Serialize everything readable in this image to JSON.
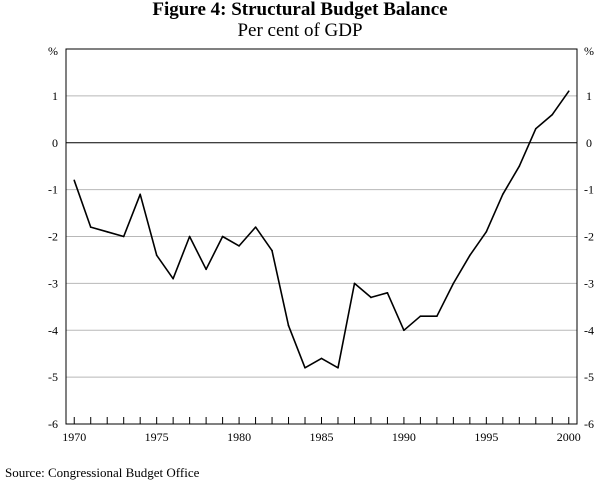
{
  "figure": {
    "title": "Figure 4: Structural Budget Balance",
    "subtitle": "Per cent of GDP",
    "source": "Source: Congressional Budget Office"
  },
  "chart_data": {
    "type": "line",
    "title": "Figure 4: Structural Budget Balance",
    "subtitle": "Per cent of GDP",
    "xlabel": "",
    "ylabel": "%",
    "y2label": "%",
    "xlim": [
      1969.5,
      2000.5
    ],
    "ylim": [
      -6,
      2
    ],
    "x_ticks": [
      1970,
      1975,
      1980,
      1985,
      1990,
      1995,
      2000
    ],
    "y_ticks": [
      1,
      0,
      -1,
      -2,
      -3,
      -4,
      -5,
      -6
    ],
    "grid": true,
    "series": [
      {
        "x": [
          1970,
          1971,
          1972,
          1973,
          1974,
          1975,
          1976,
          1977,
          1978,
          1979,
          1980,
          1981,
          1982,
          1983,
          1984,
          1985,
          1986,
          1987,
          1988,
          1989,
          1990,
          1991,
          1992,
          1993,
          1994,
          1995,
          1996,
          1997,
          1998,
          1999,
          2000
        ],
        "values": [
          -0.8,
          -1.8,
          -1.9,
          -2.0,
          -1.1,
          -2.4,
          -2.9,
          -2.0,
          -2.7,
          -2.0,
          -2.2,
          -1.8,
          -2.3,
          -3.9,
          -4.8,
          -4.6,
          -4.8,
          -3.0,
          -3.3,
          -3.2,
          -4.0,
          -3.7,
          -3.7,
          -3.0,
          -2.4,
          -1.9,
          -1.1,
          -0.5,
          0.3,
          0.6,
          1.1
        ]
      }
    ]
  }
}
